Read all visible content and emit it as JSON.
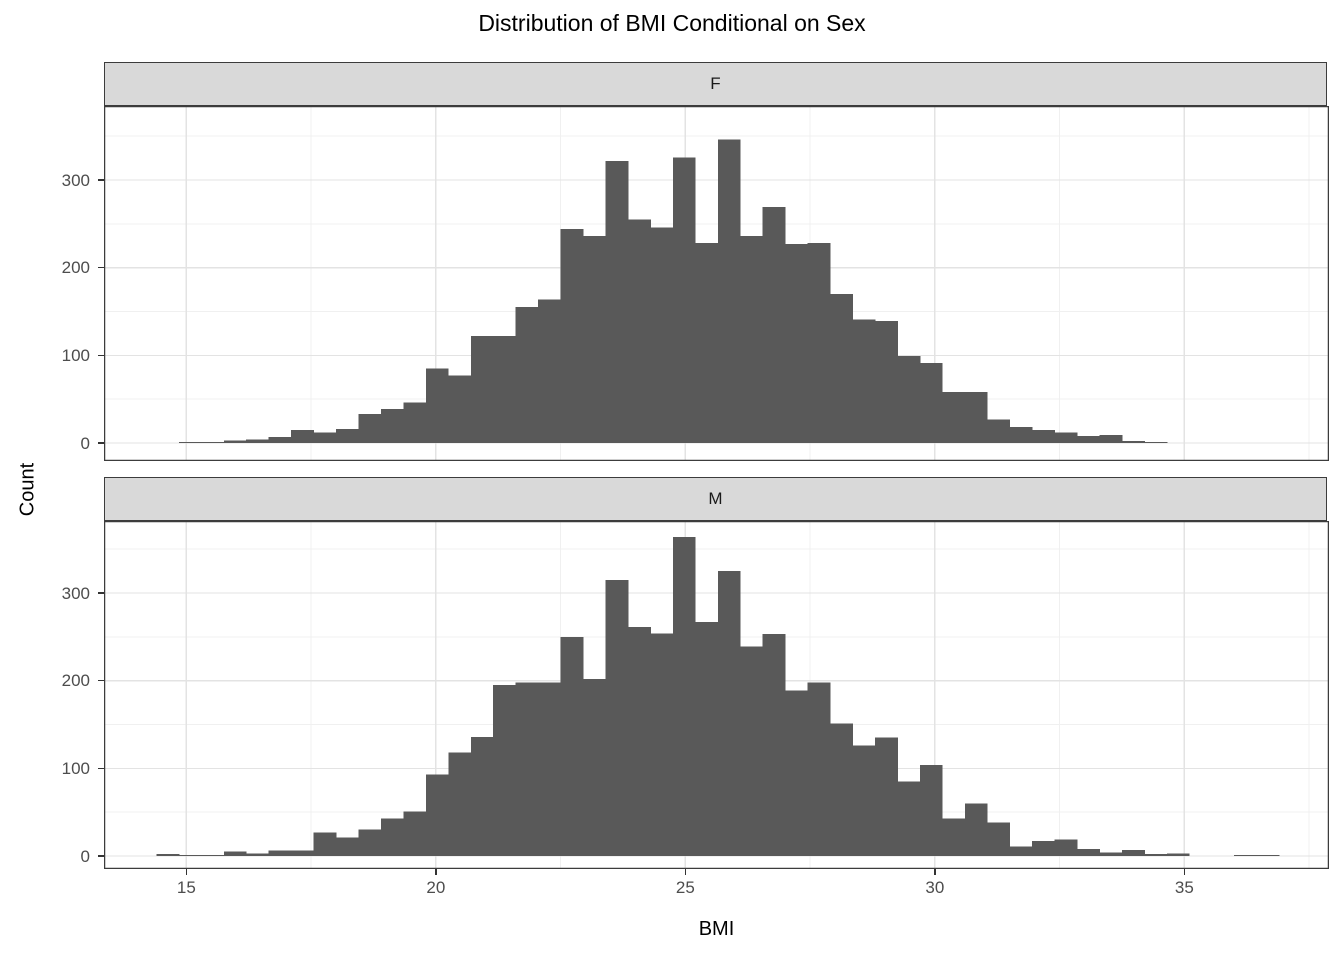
{
  "title": "Distribution of BMI Conditional on Sex",
  "axes": {
    "xlabel": "BMI",
    "ylabel": "Count",
    "x_ticks": [
      15,
      20,
      25,
      30,
      35
    ],
    "y_ticks": [
      0,
      100,
      200,
      300
    ]
  },
  "colors": {
    "bar_fill": "#595959",
    "strip_bg": "#d9d9d9",
    "strip_border": "#3c3c3c",
    "panel_border": "#3c3c3c",
    "grid_major": "#e3e3e3",
    "grid_minor": "#f0f0f0",
    "tick_text": "#4d4d4d",
    "axis_text": "#000000"
  },
  "chart_data": [
    {
      "type": "bar",
      "subtype": "histogram",
      "facet_label": "F",
      "title": "Distribution of BMI Conditional on Sex",
      "xlabel": "BMI",
      "ylabel": "Count",
      "bin_start": 14.4,
      "bin_width": 0.45,
      "xlim": [
        13.35,
        37.9
      ],
      "ylim": [
        0,
        383
      ],
      "grid": true,
      "counts": [
        0,
        1,
        1,
        3,
        4,
        7,
        15,
        12,
        16,
        33,
        39,
        46,
        85,
        77,
        122,
        122,
        155,
        164,
        244,
        236,
        322,
        255,
        246,
        326,
        228,
        346,
        236,
        269,
        227,
        228,
        170,
        141,
        139,
        99,
        91,
        58,
        58,
        27,
        18,
        15,
        12,
        8,
        9,
        2,
        1,
        0,
        0,
        0,
        0,
        0
      ]
    },
    {
      "type": "bar",
      "subtype": "histogram",
      "facet_label": "M",
      "title": "Distribution of BMI Conditional on Sex",
      "xlabel": "BMI",
      "ylabel": "Count",
      "bin_start": 14.4,
      "bin_width": 0.45,
      "xlim": [
        13.35,
        37.9
      ],
      "ylim": [
        0,
        383
      ],
      "grid": true,
      "counts": [
        2,
        1,
        1,
        5,
        3,
        6,
        6,
        27,
        21,
        30,
        43,
        51,
        93,
        118,
        136,
        195,
        198,
        198,
        250,
        202,
        315,
        261,
        254,
        364,
        267,
        325,
        239,
        253,
        189,
        198,
        151,
        126,
        135,
        85,
        104,
        43,
        60,
        38,
        11,
        17,
        19,
        8,
        4,
        7,
        2,
        3,
        0,
        0,
        1,
        1
      ]
    }
  ]
}
